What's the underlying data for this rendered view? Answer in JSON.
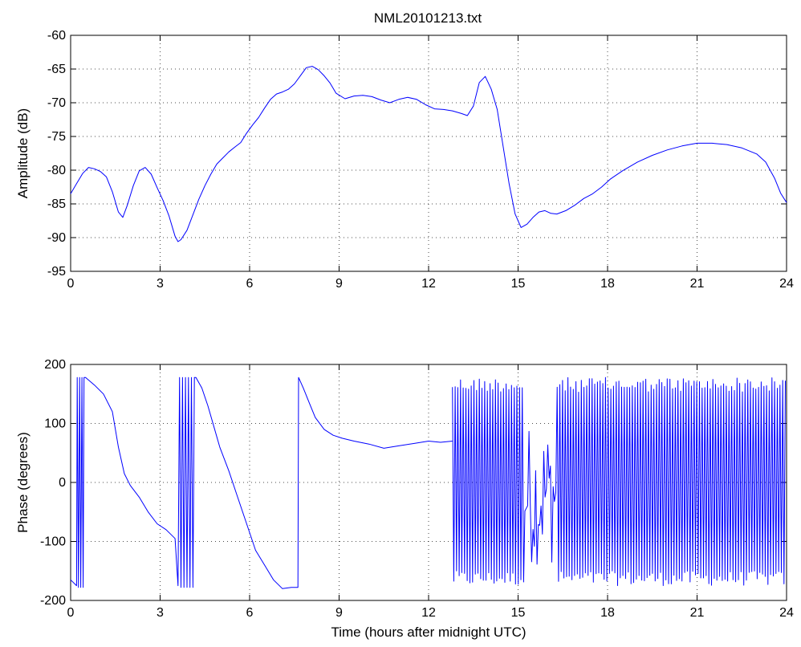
{
  "figure": {
    "title": "NML20101213.txt"
  },
  "colors": {
    "series": "#0000ff",
    "axes": "#000000",
    "background": "#ffffff"
  },
  "chart_data": [
    {
      "type": "line",
      "title": "NML20101213.txt",
      "xlabel": "",
      "ylabel": "Amplitude (dB)",
      "xlim": [
        0,
        24
      ],
      "ylim": [
        -95,
        -60
      ],
      "xticks": [
        0,
        3,
        6,
        9,
        12,
        15,
        18,
        21,
        24
      ],
      "yticks": [
        -95,
        -90,
        -85,
        -80,
        -75,
        -70,
        -65,
        -60
      ],
      "grid": true,
      "series": [
        {
          "x": [
            0,
            0.2,
            0.4,
            0.6,
            0.8,
            1.0,
            1.2,
            1.4,
            1.6,
            1.75,
            1.9,
            2.1,
            2.3,
            2.5,
            2.7,
            2.9,
            3.1,
            3.3,
            3.5,
            3.6,
            3.7,
            3.9,
            4.1,
            4.3,
            4.5,
            4.7,
            4.9,
            5.1,
            5.3,
            5.5,
            5.7,
            5.9,
            6.1,
            6.3,
            6.5,
            6.7,
            6.9,
            7.1,
            7.3,
            7.5,
            7.7,
            7.9,
            8.1,
            8.3,
            8.5,
            8.7,
            8.9,
            9.2,
            9.5,
            9.8,
            10.1,
            10.4,
            10.7,
            11.0,
            11.3,
            11.6,
            11.9,
            12.2,
            12.5,
            12.8,
            13.1,
            13.3,
            13.5,
            13.7,
            13.9,
            14.1,
            14.3,
            14.5,
            14.7,
            14.9,
            15.1,
            15.3,
            15.5,
            15.7,
            15.9,
            16.1,
            16.3,
            16.6,
            16.9,
            17.2,
            17.5,
            17.8,
            18.1,
            18.5,
            19.0,
            19.5,
            20.0,
            20.5,
            21.0,
            21.5,
            22.0,
            22.5,
            23.0,
            23.3,
            23.6,
            23.8,
            24.0
          ],
          "y": [
            -83.5,
            -82.0,
            -80.5,
            -79.6,
            -79.8,
            -80.2,
            -81.0,
            -83.2,
            -86.2,
            -87.0,
            -85.2,
            -82.3,
            -80.1,
            -79.6,
            -80.6,
            -82.6,
            -84.5,
            -86.8,
            -89.8,
            -90.6,
            -90.3,
            -88.9,
            -86.6,
            -84.3,
            -82.3,
            -80.6,
            -79.1,
            -78.2,
            -77.3,
            -76.6,
            -75.9,
            -74.5,
            -73.3,
            -72.2,
            -70.8,
            -69.5,
            -68.7,
            -68.4,
            -68.0,
            -67.2,
            -66.0,
            -64.8,
            -64.6,
            -65.1,
            -66.0,
            -67.1,
            -68.6,
            -69.4,
            -69.0,
            -68.9,
            -69.1,
            -69.6,
            -70.0,
            -69.5,
            -69.2,
            -69.5,
            -70.3,
            -70.9,
            -71.0,
            -71.2,
            -71.6,
            -71.9,
            -70.5,
            -67.0,
            -66.1,
            -68.0,
            -71.0,
            -76.5,
            -82.0,
            -86.5,
            -88.5,
            -88.0,
            -87.0,
            -86.2,
            -86.0,
            -86.4,
            -86.5,
            -86.0,
            -85.2,
            -84.2,
            -83.5,
            -82.5,
            -81.3,
            -80.1,
            -78.8,
            -77.8,
            -77.0,
            -76.4,
            -76.0,
            -76.0,
            -76.2,
            -76.7,
            -77.6,
            -78.8,
            -81.2,
            -83.4,
            -84.8
          ]
        }
      ]
    },
    {
      "type": "line",
      "title": "",
      "xlabel": "Time (hours after midnight UTC)",
      "ylabel": "Phase (degrees)",
      "xlim": [
        0,
        24
      ],
      "ylim": [
        -200,
        200
      ],
      "xticks": [
        0,
        3,
        6,
        9,
        12,
        15,
        18,
        21,
        24
      ],
      "yticks": [
        -200,
        -100,
        0,
        100,
        200
      ],
      "grid": true,
      "series": [
        {
          "x": [
            0,
            0.2,
            0.22,
            0.26,
            0.3,
            0.34,
            0.38,
            0.42,
            0.45,
            0.5,
            0.8,
            1.1,
            1.4,
            1.6,
            1.8,
            2.0,
            2.3,
            2.6,
            2.9,
            3.2,
            3.5,
            3.6,
            3.65,
            3.7,
            3.75,
            3.8,
            3.85,
            3.9,
            3.95,
            4.0,
            4.05,
            4.1,
            4.15,
            4.2,
            4.4,
            4.6,
            4.8,
            5.0,
            5.3,
            5.6,
            5.9,
            6.2,
            6.5,
            6.8,
            7.1,
            7.4,
            7.62,
            7.64,
            7.8,
            8.0,
            8.2,
            8.5,
            8.8,
            9.1,
            9.5,
            10.0,
            10.5,
            11.0,
            11.5,
            12.0,
            12.4,
            12.8
          ],
          "y": [
            -165,
            -175,
            178,
            -178,
            178,
            -178,
            178,
            -178,
            178,
            178,
            165,
            150,
            120,
            60,
            15,
            -5,
            -25,
            -50,
            -70,
            -80,
            -95,
            -175,
            178,
            -178,
            178,
            -178,
            178,
            -178,
            178,
            -178,
            178,
            -178,
            178,
            178,
            160,
            130,
            95,
            60,
            20,
            -25,
            -70,
            -115,
            -140,
            -165,
            -180,
            -178,
            -178,
            178,
            160,
            135,
            110,
            90,
            80,
            75,
            70,
            65,
            58,
            62,
            66,
            70,
            68,
            70
          ]
        }
      ],
      "noise_band": {
        "x_range": [
          12.8,
          24.0
        ],
        "y_range": [
          -175,
          178
        ],
        "gap_x_range": [
          15.2,
          16.3
        ]
      }
    }
  ]
}
